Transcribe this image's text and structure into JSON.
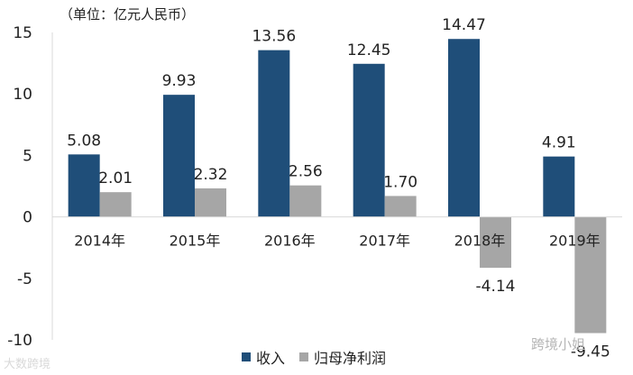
{
  "chart_data": {
    "type": "bar",
    "unit_label": "（单位：亿元人民币）",
    "categories": [
      "2014年",
      "2015年",
      "2016年",
      "2017年",
      "2018年",
      "2019年"
    ],
    "series": [
      {
        "name": "收入",
        "color": "#1f4e79",
        "values": [
          5.08,
          9.93,
          13.56,
          12.45,
          14.47,
          4.91
        ],
        "labels": [
          "5.08",
          "9.93",
          "13.56",
          "12.45",
          "14.47",
          "4.91"
        ]
      },
      {
        "name": "归母净利润",
        "color": "#a6a6a6",
        "values": [
          2.01,
          2.32,
          2.56,
          1.7,
          -4.14,
          -9.45
        ],
        "labels": [
          "2.01",
          "2.32",
          "2.56",
          "1.70",
          "-4.14",
          "-9.45"
        ]
      }
    ],
    "yticks": [
      15,
      10,
      5,
      0,
      -5,
      -10
    ],
    "ylim": [
      -10,
      15
    ],
    "legend_position": "bottom"
  },
  "watermarks": {
    "left": "大数跨境",
    "right": "跨境小姐"
  }
}
